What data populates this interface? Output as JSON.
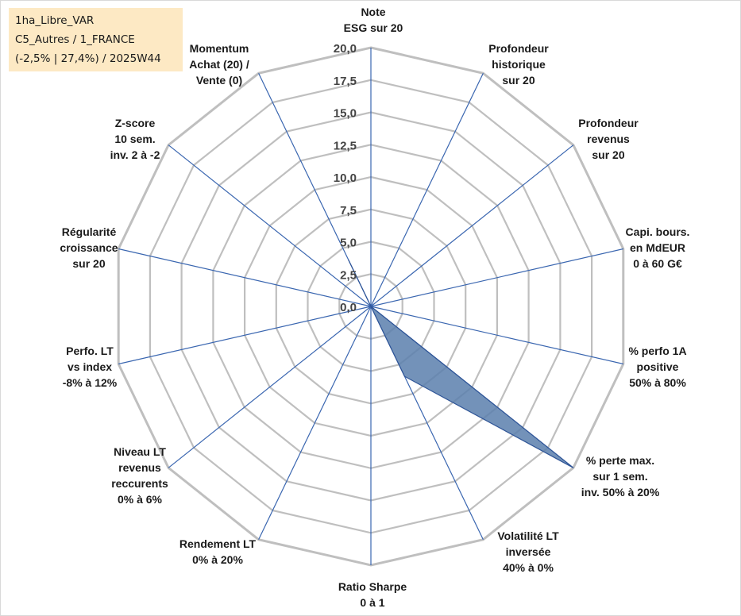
{
  "info_box": {
    "line1": "1ha_Libre_VAR",
    "line2": "C5_Autres / 1_FRANCE",
    "line3": "(-2,5% | 27,4%) / 2025W44"
  },
  "chart_data": {
    "type": "radar",
    "title": "",
    "categories": [
      [
        "Note",
        "ESG sur 20"
      ],
      [
        "Profondeur",
        "historique",
        "sur 20"
      ],
      [
        "Profondeur",
        "revenus",
        "sur 20"
      ],
      [
        "Capi. bours.",
        "en MdEUR",
        "0 à 60 G€"
      ],
      [
        "% perfo 1A",
        "positive",
        "50% à 80%"
      ],
      [
        "% perte max.",
        "sur 1 sem.",
        "inv. 50% à 20%"
      ],
      [
        "Volatilité LT",
        "inversée",
        "40% à 0%"
      ],
      [
        "Ratio Sharpe",
        "0 à 1"
      ],
      [
        "Rendement LT",
        "0% à 20%"
      ],
      [
        "Niveau LT",
        "revenus",
        "reccurents",
        "0% à 6%"
      ],
      [
        "Perfo. LT",
        "vs index",
        "-8% à 12%"
      ],
      [
        "Régularité",
        "croissance",
        "sur 20"
      ],
      [
        "Z-score",
        "10 sem.",
        "inv. 2 à -2"
      ],
      [
        "Momentum",
        "Achat (20) /",
        "Vente (0)"
      ]
    ],
    "series": [
      {
        "values": [
          0,
          0,
          0,
          0,
          0,
          20,
          6,
          0,
          0,
          0,
          0,
          0,
          0,
          4
        ]
      }
    ],
    "rlim": [
      0,
      20
    ],
    "ticks": [
      "0,0",
      "2,5",
      "5,0",
      "7,5",
      "10,0",
      "12,5",
      "15,0",
      "17,5",
      "20,0"
    ],
    "grid": true,
    "legend": "none",
    "colors": {
      "fill": "#5b7fad",
      "stroke": "#2f5597",
      "spoke": "#3a66b0",
      "grid": "#bfbfbf"
    }
  }
}
